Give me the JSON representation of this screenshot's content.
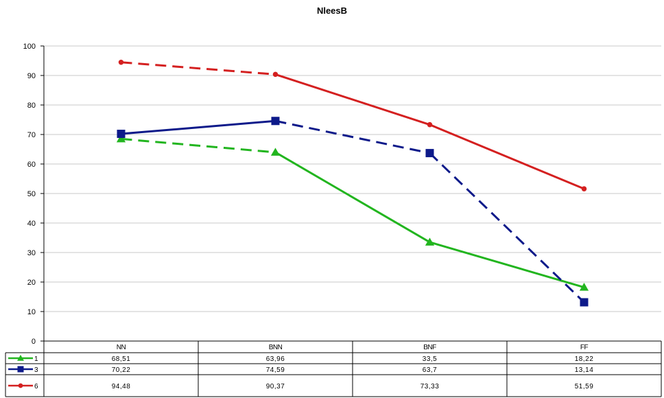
{
  "chart_data": {
    "type": "line",
    "title": "NleesB",
    "categories": [
      "NN",
      "BNN",
      "BNF",
      "FF"
    ],
    "ylim": [
      0,
      100
    ],
    "yticks": [
      0,
      10,
      20,
      30,
      40,
      50,
      60,
      70,
      80,
      90,
      100
    ],
    "grid": true,
    "legend": "data-table-bottom",
    "series": [
      {
        "name": "1",
        "values": [
          68.51,
          63.96,
          33.5,
          18.22
        ],
        "labels": [
          "68,51",
          "63,96",
          "33,5",
          "18,22"
        ],
        "color": "#22b51f",
        "marker": "triangle",
        "dashed_first_segment": true
      },
      {
        "name": "3",
        "values": [
          70.22,
          74.59,
          63.7,
          13.14
        ],
        "labels": [
          "70,22",
          "74,59",
          "63,7",
          "13,14"
        ],
        "color": "#0d1a8a",
        "marker": "square",
        "dashed_segments": [
          1,
          2
        ]
      },
      {
        "name": "6",
        "values": [
          94.48,
          90.37,
          73.33,
          51.59
        ],
        "labels": [
          "94,48",
          "90,37",
          "73,33",
          "51,59"
        ],
        "color": "#d42020",
        "marker": "circle",
        "dashed_first_segment": true
      }
    ]
  }
}
